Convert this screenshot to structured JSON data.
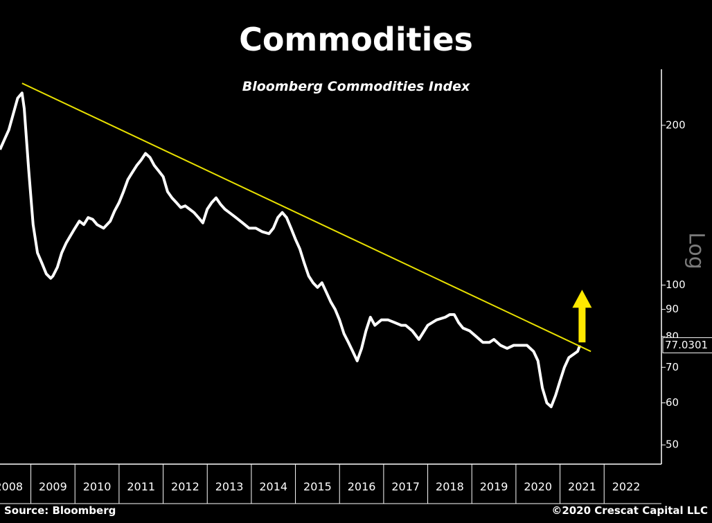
{
  "chart_data": {
    "type": "line",
    "title": "Commodities",
    "subtitle": "Bloomberg Commodities Index",
    "source": "Source: Bloomberg",
    "copyright": "©2020 Crescat Capital LLC",
    "scale": "log",
    "y_axis_label": "Log",
    "y_ticks": [
      50,
      60,
      70,
      80,
      90,
      100,
      200
    ],
    "y_range": [
      46,
      255
    ],
    "x_tick_labels": [
      "2008",
      "2009",
      "2010",
      "2011",
      "2012",
      "2013",
      "2014",
      "2015",
      "2016",
      "2017",
      "2018",
      "2019",
      "2020",
      "2021",
      "2022"
    ],
    "x_range": [
      2007.8,
      2022.8
    ],
    "last_value_label": "77.0301",
    "colors": {
      "background": "#000000",
      "series": "#ffffff",
      "trendline": "#e8e000",
      "arrow": "#ffe800"
    },
    "trendline": {
      "x": [
        2008.3,
        2021.2
      ],
      "y": [
        240,
        75
      ]
    },
    "arrow": {
      "direction": "up",
      "x": 2021.0,
      "y_from": 78,
      "y_to": 98
    },
    "series": [
      {
        "x": [
          2007.8,
          2007.9,
          2008.0,
          2008.1,
          2008.2,
          2008.3,
          2008.35,
          2008.45,
          2008.55,
          2008.65,
          2008.75,
          2008.85,
          2008.95,
          2009.0,
          2009.1,
          2009.2,
          2009.3,
          2009.4,
          2009.5,
          2009.6,
          2009.7,
          2009.8,
          2009.9,
          2010.0,
          2010.15,
          2010.3,
          2010.4,
          2010.5,
          2010.6,
          2010.7,
          2010.8,
          2010.9,
          2011.0,
          2011.1,
          2011.2,
          2011.3,
          2011.4,
          2011.5,
          2011.6,
          2011.7,
          2011.8,
          2011.9,
          2012.0,
          2012.1,
          2012.2,
          2012.3,
          2012.4,
          2012.5,
          2012.6,
          2012.7,
          2012.8,
          2012.9,
          2013.0,
          2013.15,
          2013.3,
          2013.45,
          2013.6,
          2013.75,
          2013.9,
          2014.0,
          2014.1,
          2014.2,
          2014.3,
          2014.4,
          2014.5,
          2014.6,
          2014.7,
          2014.8,
          2014.9,
          2015.0,
          2015.1,
          2015.2,
          2015.3,
          2015.4,
          2015.5,
          2015.6,
          2015.7,
          2015.8,
          2015.9,
          2016.0,
          2016.1,
          2016.2,
          2016.3,
          2016.45,
          2016.6,
          2016.75,
          2016.9,
          2017.0,
          2017.15,
          2017.3,
          2017.5,
          2017.7,
          2017.9,
          2018.0,
          2018.1,
          2018.2,
          2018.3,
          2018.45,
          2018.6,
          2018.75,
          2018.9,
          2019.0,
          2019.15,
          2019.3,
          2019.45,
          2019.6,
          2019.75,
          2019.9,
          2020.0,
          2020.1,
          2020.2,
          2020.3,
          2020.4,
          2020.5,
          2020.6,
          2020.7,
          2020.8,
          2020.9,
          2020.95
        ],
        "y": [
          180,
          188,
          196,
          210,
          225,
          230,
          215,
          165,
          130,
          115,
          110,
          105,
          103,
          104,
          108,
          115,
          120,
          124,
          128,
          132,
          130,
          134,
          133,
          130,
          128,
          132,
          138,
          143,
          150,
          158,
          163,
          168,
          172,
          177,
          174,
          168,
          164,
          160,
          150,
          146,
          143,
          140,
          141,
          139,
          137,
          134,
          131,
          139,
          143,
          146,
          142,
          139,
          137,
          134,
          131,
          128,
          128,
          126,
          125,
          128,
          134,
          137,
          134,
          128,
          122,
          117,
          110,
          104,
          101,
          99,
          101,
          97,
          93,
          90,
          86,
          81,
          78,
          75,
          72,
          76,
          82,
          87,
          84,
          86,
          86,
          85,
          84,
          84,
          82,
          79,
          84,
          86,
          87,
          88,
          88,
          85,
          83,
          82,
          80,
          78,
          78,
          79,
          77,
          76,
          77,
          77,
          77,
          75,
          72,
          64,
          60,
          59,
          62,
          66,
          70,
          73,
          74,
          75,
          77
        ]
      }
    ]
  }
}
